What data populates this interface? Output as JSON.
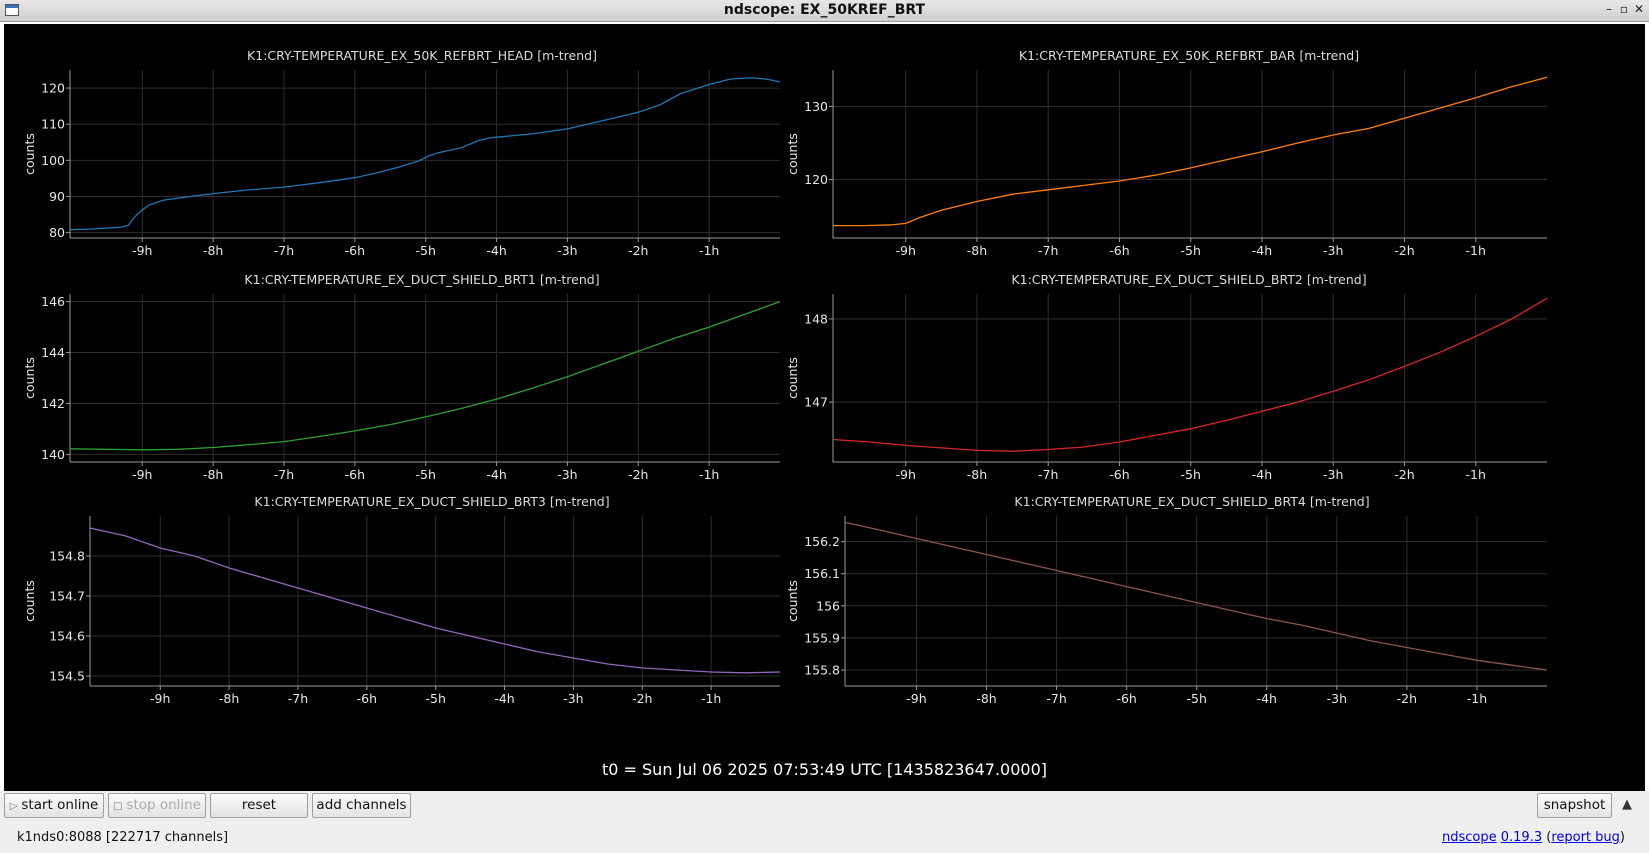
{
  "window": {
    "title": "ndscope: EX_50KREF_BRT",
    "minimize": "–",
    "maximize": "▫",
    "close": "✕"
  },
  "t0_label": "t0 = Sun Jul 06 2025 07:53:49 UTC [1435823647.0000]",
  "toolbar": {
    "start_online": "start online",
    "stop_online": "stop online",
    "reset": "reset",
    "add_channels": "add channels",
    "snapshot": "snapshot",
    "expand": "▲"
  },
  "status": {
    "connection": "k1nds0:8088  [222717 channels]",
    "app": "ndscope",
    "version": "0.19.3",
    "report_bug": "report bug"
  },
  "plots": [
    {
      "title": "K1:CRY-TEMPERATURE_EX_50K_REFBRT_HEAD [m-trend]",
      "ylabel": "counts",
      "color": "#1f77b4",
      "ylim": [
        78.5,
        125
      ],
      "yticks": [
        80,
        90,
        100,
        110,
        120
      ],
      "ytick_labels": [
        "80",
        "90",
        "100",
        "110",
        "120"
      ],
      "xlim": [
        -10.02,
        0
      ],
      "xticks": [
        -9,
        -8,
        -7,
        -6,
        -5,
        -4,
        -3,
        -2,
        -1
      ],
      "xtick_labels": [
        "-9h",
        "-8h",
        "-7h",
        "-6h",
        "-5h",
        "-4h",
        "-3h",
        "-2h",
        "-1h"
      ],
      "x": [
        -10.02,
        -9.7,
        -9.3,
        -9.2,
        -9.1,
        -9.0,
        -8.9,
        -8.7,
        -8.4,
        -8.0,
        -7.5,
        -7.0,
        -6.5,
        -6.0,
        -5.7,
        -5.4,
        -5.1,
        -4.95,
        -4.8,
        -4.5,
        -4.25,
        -4.1,
        -4.0,
        -3.5,
        -3.0,
        -2.5,
        -2.0,
        -1.7,
        -1.4,
        -1.0,
        -0.7,
        -0.4,
        -0.2,
        0
      ],
      "y": [
        80.8,
        81.0,
        81.5,
        82.0,
        84.5,
        86.3,
        87.7,
        89.0,
        89.8,
        90.8,
        91.8,
        92.6,
        93.8,
        95.2,
        96.5,
        98.0,
        99.8,
        101.3,
        102.2,
        103.5,
        105.5,
        106.2,
        106.4,
        107.3,
        108.7,
        111.0,
        113.3,
        115.3,
        118.5,
        121.0,
        122.5,
        122.8,
        122.5,
        121.7
      ]
    },
    {
      "title": "K1:CRY-TEMPERATURE_EX_50K_REFBRT_BAR [m-trend]",
      "ylabel": "counts",
      "color": "#ff7f0e",
      "ylim": [
        112,
        135
      ],
      "yticks": [
        120,
        130
      ],
      "ytick_labels": [
        "120",
        "130"
      ],
      "xlim": [
        -10.02,
        0
      ],
      "xticks": [
        -9,
        -8,
        -7,
        -6,
        -5,
        -4,
        -3,
        -2,
        -1
      ],
      "xtick_labels": [
        "-9h",
        "-8h",
        "-7h",
        "-6h",
        "-5h",
        "-4h",
        "-3h",
        "-2h",
        "-1h"
      ],
      "x": [
        -10.02,
        -9.6,
        -9.2,
        -9.0,
        -8.8,
        -8.5,
        -8.0,
        -7.5,
        -7.0,
        -6.5,
        -6.0,
        -5.5,
        -5.0,
        -4.5,
        -4.0,
        -3.5,
        -3.0,
        -2.5,
        -2.0,
        -1.5,
        -1.0,
        -0.5,
        0
      ],
      "y": [
        113.7,
        113.7,
        113.8,
        114.0,
        114.8,
        115.8,
        117.0,
        118.0,
        118.6,
        119.2,
        119.8,
        120.6,
        121.6,
        122.7,
        123.8,
        125.0,
        126.1,
        127.0,
        128.4,
        129.8,
        131.2,
        132.7,
        134.0
      ]
    },
    {
      "title": "K1:CRY-TEMPERATURE_EX_DUCT_SHIELD_BRT1 [m-trend]",
      "ylabel": "counts",
      "color": "#2ca02c",
      "ylim": [
        139.7,
        146.3
      ],
      "yticks": [
        140,
        142,
        144,
        146
      ],
      "ytick_labels": [
        "140",
        "142",
        "144",
        "146"
      ],
      "xlim": [
        -10.02,
        0
      ],
      "xticks": [
        -9,
        -8,
        -7,
        -6,
        -5,
        -4,
        -3,
        -2,
        -1
      ],
      "xtick_labels": [
        "-9h",
        "-8h",
        "-7h",
        "-6h",
        "-5h",
        "-4h",
        "-3h",
        "-2h",
        "-1h"
      ],
      "x": [
        -10.02,
        -9.5,
        -9.0,
        -8.5,
        -8.0,
        -7.5,
        -7.0,
        -6.5,
        -6.0,
        -5.5,
        -5.0,
        -4.5,
        -4.0,
        -3.5,
        -3.0,
        -2.5,
        -2.0,
        -1.5,
        -1.0,
        -0.5,
        0
      ],
      "y": [
        140.22,
        140.2,
        140.18,
        140.2,
        140.27,
        140.38,
        140.5,
        140.7,
        140.92,
        141.17,
        141.47,
        141.8,
        142.17,
        142.6,
        143.05,
        143.55,
        144.05,
        144.55,
        145.0,
        145.5,
        146.0
      ]
    },
    {
      "title": "K1:CRY-TEMPERATURE_EX_DUCT_SHIELD_BRT2 [m-trend]",
      "ylabel": "counts",
      "color": "#d62728",
      "ylim": [
        146.28,
        148.3
      ],
      "yticks": [
        147,
        148
      ],
      "ytick_labels": [
        "147",
        "148"
      ],
      "xlim": [
        -10.02,
        0
      ],
      "xticks": [
        -9,
        -8,
        -7,
        -6,
        -5,
        -4,
        -3,
        -2,
        -1
      ],
      "xtick_labels": [
        "-9h",
        "-8h",
        "-7h",
        "-6h",
        "-5h",
        "-4h",
        "-3h",
        "-2h",
        "-1h"
      ],
      "x": [
        -10.02,
        -9.5,
        -9.0,
        -8.5,
        -8.0,
        -7.5,
        -7.0,
        -6.5,
        -6.0,
        -5.5,
        -5.0,
        -4.5,
        -4.0,
        -3.5,
        -3.0,
        -2.5,
        -2.0,
        -1.5,
        -1.0,
        -0.5,
        0
      ],
      "y": [
        146.55,
        146.52,
        146.48,
        146.45,
        146.42,
        146.41,
        146.43,
        146.46,
        146.52,
        146.6,
        146.68,
        146.78,
        146.89,
        147.0,
        147.13,
        147.27,
        147.43,
        147.6,
        147.79,
        148.0,
        148.25
      ]
    },
    {
      "title": "K1:CRY-TEMPERATURE_EX_DUCT_SHIELD_BRT3 [m-trend]",
      "ylabel": "counts",
      "color": "#9467bd",
      "ylim": [
        154.475,
        154.9
      ],
      "yticks": [
        154.5,
        154.6,
        154.7,
        154.8
      ],
      "ytick_labels": [
        "154.5",
        "154.6",
        "154.7",
        "154.8"
      ],
      "xlim": [
        -10.02,
        0
      ],
      "xticks": [
        -9,
        -8,
        -7,
        -6,
        -5,
        -4,
        -3,
        -2,
        -1
      ],
      "xtick_labels": [
        "-9h",
        "-8h",
        "-7h",
        "-6h",
        "-5h",
        "-4h",
        "-3h",
        "-2h",
        "-1h"
      ],
      "x": [
        -10.02,
        -9.5,
        -9.0,
        -8.5,
        -8.0,
        -7.5,
        -7.0,
        -6.5,
        -6.0,
        -5.5,
        -5.0,
        -4.5,
        -4.0,
        -3.5,
        -3.0,
        -2.5,
        -2.0,
        -1.5,
        -1.0,
        -0.5,
        0
      ],
      "y": [
        154.87,
        154.85,
        154.82,
        154.8,
        154.77,
        154.745,
        154.72,
        154.695,
        154.67,
        154.645,
        154.62,
        154.6,
        154.58,
        154.56,
        154.545,
        154.53,
        154.52,
        154.515,
        154.51,
        154.508,
        154.51
      ]
    },
    {
      "title": "K1:CRY-TEMPERATURE_EX_DUCT_SHIELD_BRT4 [m-trend]",
      "ylabel": "counts",
      "color": "#8c564b",
      "ylim": [
        155.75,
        156.28
      ],
      "yticks": [
        155.8,
        155.9,
        156,
        156.1,
        156.2
      ],
      "ytick_labels": [
        "155.8",
        "155.9",
        "156",
        "156.1",
        "156.2"
      ],
      "xlim": [
        -10.02,
        0
      ],
      "xticks": [
        -9,
        -8,
        -7,
        -6,
        -5,
        -4,
        -3,
        -2,
        -1
      ],
      "xtick_labels": [
        "-9h",
        "-8h",
        "-7h",
        "-6h",
        "-5h",
        "-4h",
        "-3h",
        "-2h",
        "-1h"
      ],
      "x": [
        -10.02,
        -9.5,
        -9.0,
        -8.5,
        -8.0,
        -7.5,
        -7.0,
        -6.5,
        -6.0,
        -5.5,
        -5.0,
        -4.5,
        -4.0,
        -3.5,
        -3.0,
        -2.5,
        -2.0,
        -1.5,
        -1.0,
        -0.5,
        0
      ],
      "y": [
        156.26,
        156.235,
        156.21,
        156.185,
        156.16,
        156.135,
        156.11,
        156.085,
        156.06,
        156.035,
        156.01,
        155.985,
        155.96,
        155.94,
        155.915,
        155.89,
        155.87,
        155.85,
        155.83,
        155.815,
        155.8
      ]
    }
  ],
  "chart_data": [
    {
      "type": "line",
      "title": "K1:CRY-TEMPERATURE_EX_50K_REFBRT_HEAD [m-trend]",
      "ylabel": "counts",
      "xunit": "h",
      "ylim": [
        78.5,
        125
      ],
      "grid": true
    },
    {
      "type": "line",
      "title": "K1:CRY-TEMPERATURE_EX_50K_REFBRT_BAR [m-trend]",
      "ylabel": "counts",
      "xunit": "h",
      "ylim": [
        112,
        135
      ],
      "grid": true
    },
    {
      "type": "line",
      "title": "K1:CRY-TEMPERATURE_EX_DUCT_SHIELD_BRT1 [m-trend]",
      "ylabel": "counts",
      "xunit": "h",
      "ylim": [
        139.7,
        146.3
      ],
      "grid": true
    },
    {
      "type": "line",
      "title": "K1:CRY-TEMPERATURE_EX_DUCT_SHIELD_BRT2 [m-trend]",
      "ylabel": "counts",
      "xunit": "h",
      "ylim": [
        146.28,
        148.3
      ],
      "grid": true
    },
    {
      "type": "line",
      "title": "K1:CRY-TEMPERATURE_EX_DUCT_SHIELD_BRT3 [m-trend]",
      "ylabel": "counts",
      "xunit": "h",
      "ylim": [
        154.475,
        154.9
      ],
      "grid": true
    },
    {
      "type": "line",
      "title": "K1:CRY-TEMPERATURE_EX_DUCT_SHIELD_BRT4 [m-trend]",
      "ylabel": "counts",
      "xunit": "h",
      "ylim": [
        155.75,
        156.28
      ],
      "grid": true
    }
  ]
}
